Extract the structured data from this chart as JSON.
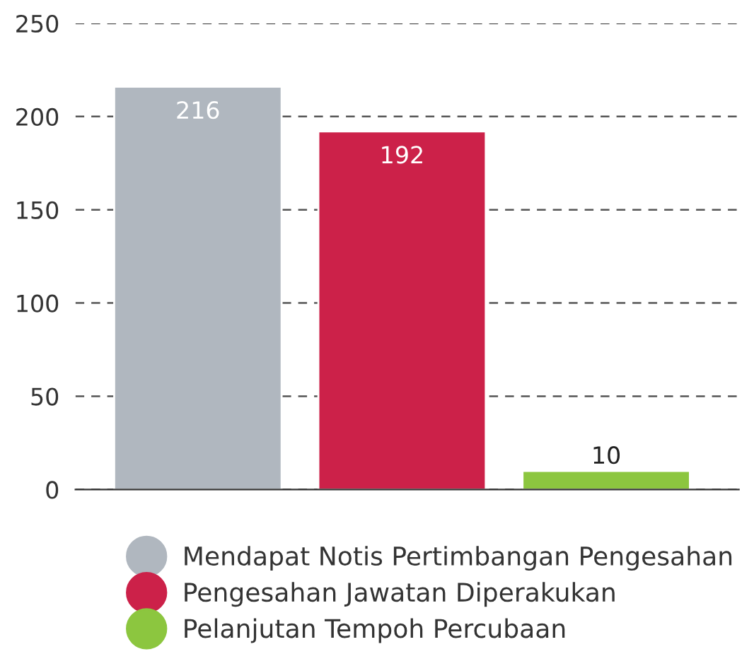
{
  "chart_data": {
    "type": "bar",
    "categories": [
      null,
      null,
      null
    ],
    "series": [
      {
        "name": "Mendapat Notis Pertimbangan Pengesahan",
        "color": "#b0b7bf",
        "values": [
          216,
          null,
          null
        ]
      },
      {
        "name": "Pengesahan Jawatan Diperakukan",
        "color": "#cc2149",
        "values": [
          null,
          192,
          null
        ]
      },
      {
        "name": "Pelanjutan Tempoh Percubaan",
        "color": "#8cc63f",
        "values": [
          null,
          null,
          10
        ]
      }
    ],
    "ylim": [
      0,
      250
    ],
    "yticks": [
      0,
      50,
      100,
      150,
      200,
      250
    ],
    "grid": "y",
    "legend": "bottom",
    "data_labels": true
  }
}
